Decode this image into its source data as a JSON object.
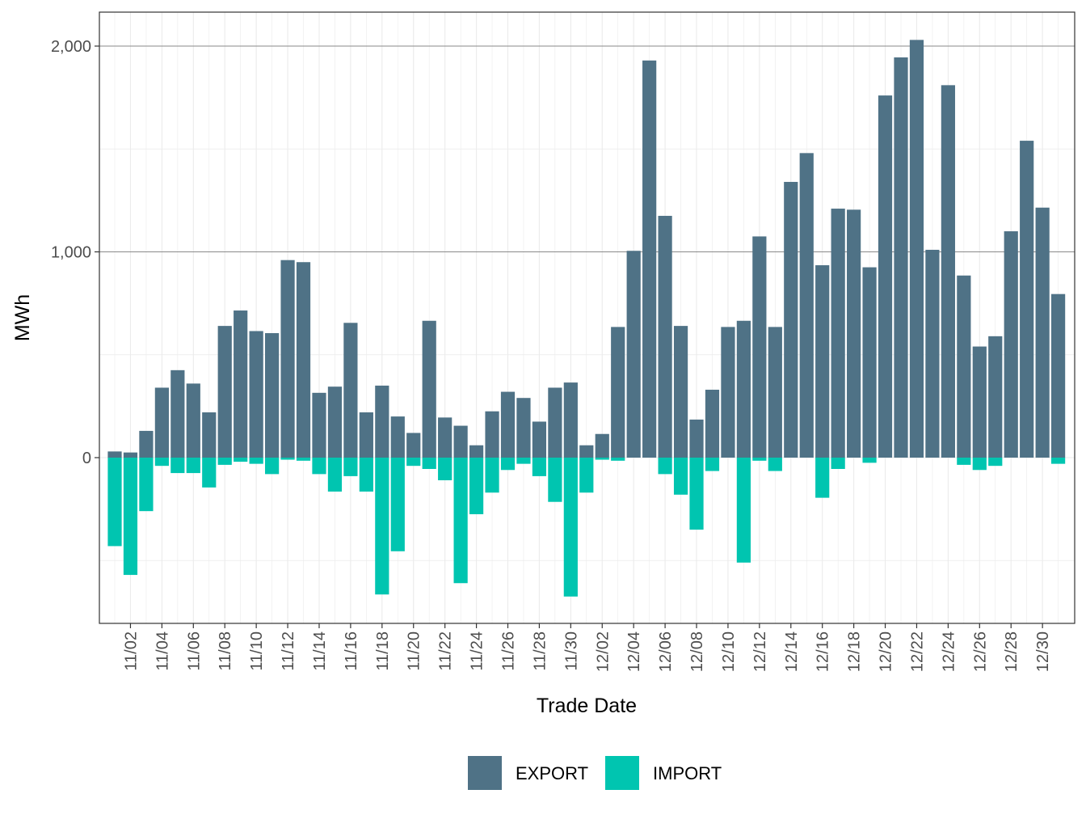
{
  "chart_data": {
    "type": "bar",
    "stacked_diverging": true,
    "xlabel": "Trade Date",
    "ylabel": "MWh",
    "ylim": [
      -810,
      2165
    ],
    "y_ticks": [
      0,
      1000,
      2000
    ],
    "y_tick_labels": [
      "0",
      "1,000",
      "2,000"
    ],
    "grid": true,
    "legend_position": "bottom",
    "categories": [
      "11/01",
      "11/02",
      "11/03",
      "11/04",
      "11/05",
      "11/06",
      "11/07",
      "11/08",
      "11/09",
      "11/10",
      "11/11",
      "11/12",
      "11/13",
      "11/14",
      "11/15",
      "11/16",
      "11/17",
      "11/18",
      "11/19",
      "11/20",
      "11/21",
      "11/22",
      "11/23",
      "11/24",
      "11/25",
      "11/26",
      "11/27",
      "11/28",
      "11/29",
      "11/30",
      "12/01",
      "12/02",
      "12/03",
      "12/04",
      "12/05",
      "12/06",
      "12/07",
      "12/08",
      "12/09",
      "12/10",
      "12/11",
      "12/12",
      "12/13",
      "12/14",
      "12/15",
      "12/16",
      "12/17",
      "12/18",
      "12/19",
      "12/20",
      "12/21",
      "12/22",
      "12/23",
      "12/24",
      "12/25",
      "12/26",
      "12/27",
      "12/28",
      "12/29",
      "12/30",
      "12/31"
    ],
    "x_tick_labels": [
      "11/02",
      "11/04",
      "11/06",
      "11/08",
      "11/10",
      "11/12",
      "11/14",
      "11/16",
      "11/18",
      "11/20",
      "11/22",
      "11/24",
      "11/26",
      "11/28",
      "11/30",
      "12/02",
      "12/04",
      "12/06",
      "12/08",
      "12/10",
      "12/12",
      "12/14",
      "12/16",
      "12/18",
      "12/20",
      "12/22",
      "12/24",
      "12/26",
      "12/28",
      "12/30"
    ],
    "series": [
      {
        "name": "EXPORT",
        "color": "#4f7286",
        "values": [
          30,
          25,
          130,
          340,
          425,
          360,
          220,
          640,
          715,
          615,
          605,
          960,
          950,
          315,
          345,
          655,
          220,
          350,
          200,
          120,
          665,
          195,
          155,
          60,
          225,
          320,
          290,
          175,
          340,
          365,
          60,
          115,
          635,
          1005,
          1930,
          1175,
          640,
          185,
          330,
          635,
          665,
          1075,
          635,
          1340,
          1480,
          935,
          1210,
          1205,
          925,
          1760,
          1945,
          2030,
          1010,
          1810,
          885,
          540,
          590,
          1100,
          1540,
          1215,
          795
        ]
      },
      {
        "name": "IMPORT",
        "color": "#00c5b0",
        "values": [
          -430,
          -570,
          -260,
          -40,
          -75,
          -75,
          -145,
          -35,
          -20,
          -30,
          -80,
          -10,
          -15,
          -80,
          -165,
          -90,
          -165,
          -665,
          -455,
          -40,
          -55,
          -110,
          -610,
          -275,
          -170,
          -60,
          -30,
          -90,
          -215,
          -675,
          -170,
          -10,
          -15,
          0,
          0,
          -80,
          -180,
          -350,
          -65,
          0,
          -510,
          -15,
          -65,
          0,
          0,
          -195,
          -55,
          0,
          -25,
          0,
          0,
          0,
          0,
          0,
          -35,
          -60,
          -40,
          0,
          0,
          0,
          -30
        ]
      }
    ]
  }
}
